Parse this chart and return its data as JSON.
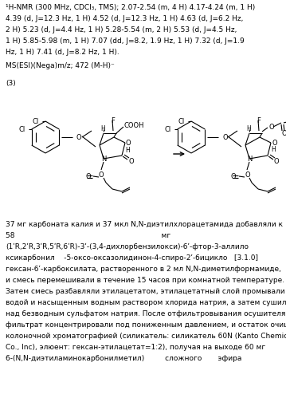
{
  "background_color": "#ffffff",
  "text_color": "#000000",
  "nmr_lines": [
    "¹H-NMR (300 MHz, CDCl₃, TMS); 2.07-2.54 (m, 4 H) 4.17-4.24 (m, 1 H)",
    "4.39 (d, J=12.3 Hz, 1 H) 4.52 (d, J=12.3 Hz, 1 H) 4.63 (d, J=6.2 Hz,",
    "2 H) 5.23 (d, J=4.4 Hz, 1 H) 5.28-5.54 (m, 2 H) 5.53 (d, J=4.5 Hz,",
    "1 H) 5.85-5.98 (m, 1 H) 7.07 (dd, J=8.2, 1.9 Hz, 1 H) 7.32 (d, J=1.9",
    "Hz, 1 H) 7.41 (d, J=8.2 Hz, 1 H)."
  ],
  "ms_line": "MS(ESI)(Nega)m/z; 472 (M-H)⁻",
  "label_3": "(3)",
  "reaction_lines": [
    "37 мг карбоната калия и 37 мкл N,N-диэтилхлорацетамида добавляли к",
    "58                                                                мг",
    "(1ʹR,2ʹR,3ʹR,5ʹR,6ʹR)-3ʹ-(3,4-дихлорбензилокси)-6ʹ-фтор-3-аллило",
    "ксикарбонил    -5-оксо-оксазолидинон-4-спиро-2ʹ-бицикло   [3.1.0]",
    "гексан-6ʹ-карбоксилата, растворенного в 2 мл N,N-диметилформамиде,",
    "и смесь перемешивали в течение 15 часов при комнатной температуре.",
    "Затем смесь разбавляли этилацетатом, этилацетатный слой промывали",
    "водой и насыщенным водным раствором хлорида натрия, а затем сушили",
    "над безводным сульфатом натрия. После отфильтровывания осушителя,",
    "фильтрат концентрировали под пониженным давлением, и остаток очищали",
    "колоночной хроматографией (силикатель: силикатель 60N (Kanto Chemical",
    "Co., Inc), элюент: гексан-этилацетат=1:2), получая на выходе 60 мг",
    "6-(N,N-диэтиламинокарбонилметил)         сложного       эфира"
  ]
}
